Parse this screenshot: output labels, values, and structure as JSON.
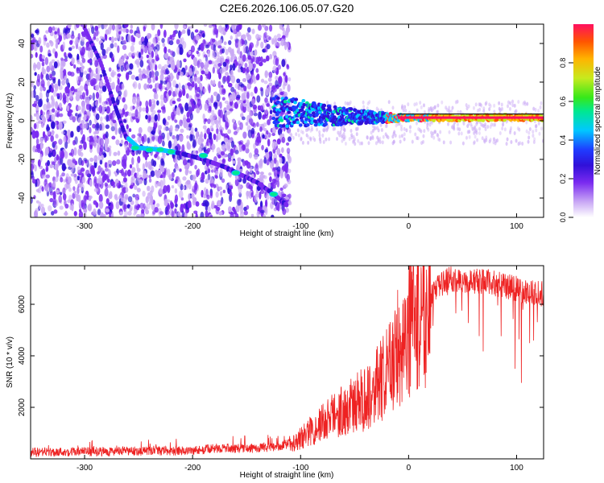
{
  "title": "C2E6.2026.106.05.07.G20",
  "chart_data": [
    {
      "type": "heatmap",
      "xlabel": "Height of straight line (km)",
      "ylabel": "Frequency (Hz)",
      "xlim": [
        -350,
        125
      ],
      "ylim": [
        -50,
        50
      ],
      "xticks": [
        -300,
        -200,
        -100,
        0,
        100
      ],
      "yticks": [
        -40,
        -20,
        0,
        20,
        40
      ],
      "grid": false,
      "colorbar": {
        "label": "Normalized spectral amplitude",
        "range": [
          0,
          1
        ],
        "ticks": [
          "0.0",
          "0.2",
          "0.4",
          "0.6",
          "0.8"
        ]
      },
      "colormap": [
        "#ffffff",
        "#c9a8f5",
        "#7a2af0",
        "#3010d8",
        "#1f3cff",
        "#00c8ff",
        "#00e890",
        "#36e81a",
        "#c6ea1e",
        "#ffb400",
        "#ff5500",
        "#ff1060"
      ],
      "features": {
        "noise_region_x": [
          -350,
          -110
        ],
        "chirp_track": [
          [
            -300,
            48
          ],
          [
            -285,
            30
          ],
          [
            -272,
            8
          ],
          [
            -262,
            -8
          ],
          [
            -250,
            -14
          ],
          [
            -230,
            -15
          ],
          [
            -210,
            -17
          ],
          [
            -190,
            -20
          ],
          [
            -170,
            -24
          ],
          [
            -155,
            -28
          ],
          [
            -140,
            -32
          ],
          [
            -125,
            -38
          ],
          [
            -112,
            -44
          ]
        ],
        "carrier_band": [
          [
            -125,
            5
          ],
          [
            -100,
            4
          ],
          [
            -80,
            3
          ],
          [
            -60,
            2.5
          ],
          [
            -40,
            2
          ],
          [
            -20,
            1.5
          ],
          [
            0,
            1.5
          ],
          [
            25,
            1.5
          ],
          [
            60,
            1.5
          ],
          [
            90,
            1.8
          ],
          [
            125,
            1.5
          ]
        ]
      }
    },
    {
      "type": "line",
      "xlabel": "Height of straight line (km)",
      "ylabel": "SNR (10 * v/v)",
      "xlim": [
        -350,
        125
      ],
      "ylim": [
        0,
        7500
      ],
      "xticks": [
        -300,
        -200,
        -100,
        0,
        100
      ],
      "yticks": [
        2000,
        4000,
        6000
      ],
      "grid": false,
      "series_color": "#ee2222",
      "x": [
        -350,
        -300,
        -250,
        -200,
        -175,
        -150,
        -125,
        -110,
        -100,
        -90,
        -80,
        -70,
        -60,
        -50,
        -40,
        -30,
        -20,
        -10,
        0,
        10,
        20,
        30,
        40,
        50,
        60,
        70,
        80,
        90,
        100,
        110,
        125
      ],
      "y": [
        250,
        280,
        300,
        320,
        420,
        400,
        450,
        600,
        800,
        1100,
        1400,
        1700,
        1900,
        2100,
        2400,
        2800,
        3300,
        4300,
        5100,
        5700,
        6200,
        6800,
        7000,
        6900,
        6900,
        6900,
        6800,
        6700,
        6600,
        6500,
        6400
      ]
    }
  ]
}
